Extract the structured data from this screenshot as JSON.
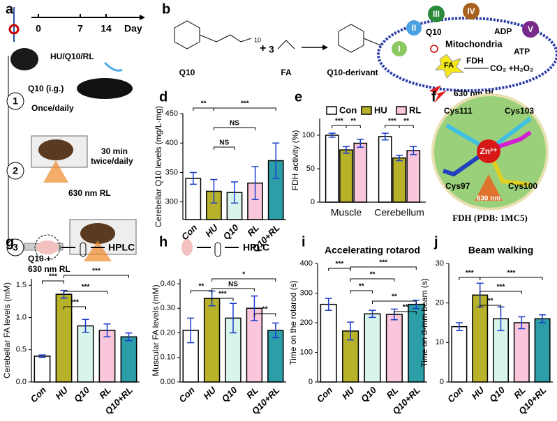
{
  "panels": {
    "a": {
      "label": "a",
      "timeline": [
        "0",
        "7",
        "14"
      ],
      "unit": "Day",
      "treatment": "HU/Q10/RL",
      "steps": [
        {
          "num": "1",
          "text": [
            "Q10 (i.g.)",
            "Once/daily"
          ]
        },
        {
          "num": "2",
          "text": [
            "30 min",
            "twice/daily",
            "630 nm RL"
          ]
        },
        {
          "num": "3",
          "text": [
            "Q10 +",
            "630 nm RL"
          ]
        }
      ]
    },
    "b": {
      "label": "b",
      "reactant1": "Q10",
      "reactant2": "FA",
      "product": "Q10-derivant",
      "plus": "+",
      "coef": "3",
      "n1": "10",
      "n2": "9"
    },
    "c": {
      "label": "c",
      "complexes": [
        "I",
        "II",
        "III",
        "IV",
        "V"
      ],
      "q10": "Q10",
      "adp": "ADP",
      "atp": "ATP",
      "organelle": "Mitochondria",
      "fa": "FA",
      "fdh": "FDH",
      "products": "CO₂ +H₂O₂",
      "light": "630 nm RL"
    },
    "f": {
      "label": "f",
      "residues": [
        "Cys111",
        "Cys103",
        "Cys97",
        "Cys100"
      ],
      "ion": "Zn²⁺",
      "light": "630 nm",
      "caption": "FDH (PDB: 1MC5)"
    },
    "g": {
      "text": "HPLC"
    },
    "h": {
      "text": "HPLC"
    }
  },
  "chart_data": [
    {
      "type": "bar",
      "panel": "d",
      "ylabel": "Cerebellar Q10 levels (mg/L·mg)",
      "categories": [
        "Con",
        "HU",
        "Q10",
        "RL",
        "Q10+RL"
      ],
      "values": [
        340,
        318,
        316,
        332,
        370
      ],
      "errors": [
        10,
        20,
        18,
        28,
        30
      ],
      "colors": [
        "#ffffff",
        "#b8b22a",
        "#d9f4ea",
        "#f9c6dc",
        "#2b9ea8"
      ],
      "ylim": [
        270,
        450
      ],
      "yticks": [
        300,
        350,
        400,
        450
      ],
      "annotations": [
        "**",
        "***",
        "NS",
        "NS"
      ]
    },
    {
      "type": "grouped_bar",
      "panel": "e",
      "ylabel": "FDH activity (%)",
      "categories": [
        "Muscle",
        "Cerebellum"
      ],
      "series": [
        {
          "name": "Con",
          "color": "#ffffff",
          "values": [
            100,
            98
          ],
          "errors": [
            3,
            5
          ]
        },
        {
          "name": "HU",
          "color": "#b8b22a",
          "values": [
            78,
            66
          ],
          "errors": [
            5,
            4
          ]
        },
        {
          "name": "RL",
          "color": "#f9c6dc",
          "values": [
            88,
            77
          ],
          "errors": [
            6,
            6
          ]
        }
      ],
      "ylim": [
        0,
        125
      ],
      "yticks": [
        0,
        50,
        100
      ],
      "annotations": [
        "***",
        "**",
        "***",
        "**"
      ]
    },
    {
      "type": "bar",
      "panel": "g",
      "ylabel": "Cerebellar FA levels (mM)",
      "categories": [
        "Con",
        "HU",
        "Q10",
        "RL",
        "Q10+RL"
      ],
      "values": [
        0.4,
        1.36,
        0.87,
        0.8,
        0.7
      ],
      "errors": [
        0.02,
        0.06,
        0.1,
        0.1,
        0.06
      ],
      "colors": [
        "#ffffff",
        "#b8b22a",
        "#d9f4ea",
        "#f9c6dc",
        "#2b9ea8"
      ],
      "ylim": [
        0,
        1.6
      ],
      "yticks": [
        {
          "value": 0,
          "label": "0.0"
        },
        {
          "value": 0.5,
          "label": "0.5"
        },
        {
          "value": 1,
          "label": "1.0"
        },
        {
          "value": 1.5,
          "label": "1.5"
        }
      ],
      "annotations": [
        "***",
        "***",
        "***",
        "***"
      ]
    },
    {
      "type": "bar",
      "panel": "h",
      "ylabel": "Muscular FA levels (mM)",
      "categories": [
        "Con",
        "HU",
        "Q10",
        "RL",
        "Q10+RL"
      ],
      "values": [
        0.21,
        0.34,
        0.26,
        0.3,
        0.21
      ],
      "errors": [
        0.05,
        0.03,
        0.06,
        0.05,
        0.03
      ],
      "colors": [
        "#ffffff",
        "#b8b22a",
        "#d9f4ea",
        "#f9c6dc",
        "#2b9ea8"
      ],
      "ylim": [
        0,
        0.42
      ],
      "yticks": [
        {
          "value": 0,
          "label": "0.00"
        },
        {
          "value": 0.1,
          "label": "0.10"
        },
        {
          "value": 0.2,
          "label": "0.20"
        },
        {
          "value": 0.3,
          "label": "0.30"
        },
        {
          "value": 0.4,
          "label": "0.40"
        }
      ],
      "annotations": [
        "**",
        "*",
        "NS",
        "***",
        "**"
      ]
    },
    {
      "type": "bar",
      "panel": "i",
      "title": "Accelerating rotarod",
      "ylabel": "Time on the rotarod (s)",
      "categories": [
        "Con",
        "HU",
        "Q10",
        "RL",
        "Q10+RL"
      ],
      "values": [
        262,
        172,
        230,
        228,
        262
      ],
      "errors": [
        20,
        30,
        12,
        18,
        14
      ],
      "colors": [
        "#ffffff",
        "#b8b22a",
        "#d9f4ea",
        "#f9c6dc",
        "#2b9ea8"
      ],
      "ylim": [
        0,
        400
      ],
      "yticks": [
        0,
        100,
        200,
        300,
        400
      ],
      "annotations": [
        "***",
        "***",
        "**",
        "**",
        "**",
        "**"
      ]
    },
    {
      "type": "bar",
      "panel": "j",
      "title": "Beam walking",
      "ylabel": "Time on 8-mm beam (s)",
      "categories": [
        "Con",
        "HU",
        "Q10",
        "RL",
        "Q10+RL"
      ],
      "values": [
        14,
        22,
        16,
        15,
        16
      ],
      "errors": [
        1,
        3,
        3,
        1.5,
        1
      ],
      "colors": [
        "#ffffff",
        "#b8b22a",
        "#d9f4ea",
        "#f9c6dc",
        "#2b9ea8"
      ],
      "ylim": [
        0,
        30
      ],
      "yticks": [
        0,
        10,
        20,
        30
      ],
      "annotations": [
        "***",
        "***",
        "***",
        "**"
      ]
    }
  ]
}
